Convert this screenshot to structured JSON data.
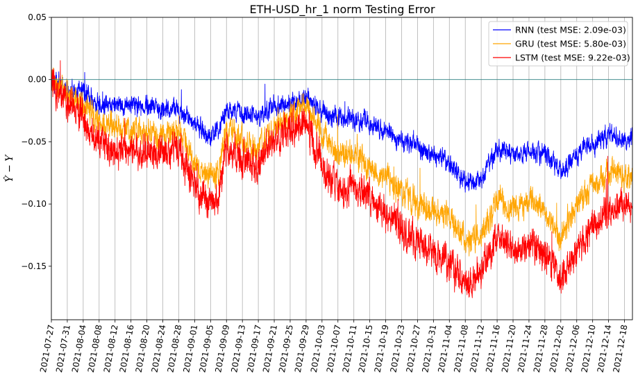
{
  "chart_data": {
    "type": "line",
    "title": "ETH-USD_hr_1 norm Testing Error",
    "ylabel": "Ŷ − Y",
    "xlabel": "",
    "ylim": [
      -0.193,
      0.05
    ],
    "yticks": [
      0.05,
      0.0,
      -0.05,
      -0.1,
      -0.15
    ],
    "ytick_labels": [
      "0.05",
      "0.00",
      "−0.05",
      "−0.10",
      "−0.15"
    ],
    "xlim": [
      "2021-07-27",
      "2021-12-20"
    ],
    "xtick_dates": [
      "2021-07-27",
      "2021-07-31",
      "2021-08-04",
      "2021-08-08",
      "2021-08-12",
      "2021-08-16",
      "2021-08-20",
      "2021-08-24",
      "2021-08-28",
      "2021-09-01",
      "2021-09-05",
      "2021-09-09",
      "2021-09-13",
      "2021-09-17",
      "2021-09-21",
      "2021-09-25",
      "2021-09-29",
      "2021-10-03",
      "2021-10-07",
      "2021-10-11",
      "2021-10-15",
      "2021-10-19",
      "2021-10-23",
      "2021-10-27",
      "2021-10-31",
      "2021-11-04",
      "2021-11-08",
      "2021-11-12",
      "2021-11-16",
      "2021-11-20",
      "2021-11-24",
      "2021-11-28",
      "2021-12-02",
      "2021-12-06",
      "2021-12-10",
      "2021-12-14",
      "2021-12-18"
    ],
    "grid": "vertical",
    "reference_line": {
      "y": 0.0,
      "color": "#2a7f80"
    },
    "legend_position": "top-right",
    "series": [
      {
        "name": "RNN (test MSE: 2.09e-03)",
        "color": "#0000ff",
        "dates": [
          "2021-07-27",
          "2021-07-31",
          "2021-08-04",
          "2021-08-08",
          "2021-08-12",
          "2021-08-16",
          "2021-08-20",
          "2021-08-24",
          "2021-08-28",
          "2021-09-01",
          "2021-09-04",
          "2021-09-07",
          "2021-09-09",
          "2021-09-13",
          "2021-09-17",
          "2021-09-21",
          "2021-09-25",
          "2021-09-29",
          "2021-10-03",
          "2021-10-07",
          "2021-10-11",
          "2021-10-15",
          "2021-10-19",
          "2021-10-23",
          "2021-10-27",
          "2021-10-31",
          "2021-11-04",
          "2021-11-08",
          "2021-11-12",
          "2021-11-16",
          "2021-11-20",
          "2021-11-24",
          "2021-11-28",
          "2021-12-02",
          "2021-12-06",
          "2021-12-10",
          "2021-12-14",
          "2021-12-20"
        ],
        "values": [
          0.0,
          -0.008,
          -0.01,
          -0.02,
          -0.018,
          -0.02,
          -0.022,
          -0.024,
          -0.025,
          -0.035,
          -0.045,
          -0.04,
          -0.025,
          -0.027,
          -0.03,
          -0.02,
          -0.02,
          -0.015,
          -0.025,
          -0.03,
          -0.032,
          -0.035,
          -0.04,
          -0.05,
          -0.055,
          -0.06,
          -0.065,
          -0.083,
          -0.08,
          -0.055,
          -0.06,
          -0.058,
          -0.06,
          -0.075,
          -0.06,
          -0.05,
          -0.045,
          -0.05
        ],
        "noise": 0.006
      },
      {
        "name": "GRU (test MSE: 5.80e-03)",
        "color": "#ffa500",
        "dates": [
          "2021-07-27",
          "2021-07-31",
          "2021-08-04",
          "2021-08-08",
          "2021-08-12",
          "2021-08-16",
          "2021-08-20",
          "2021-08-24",
          "2021-08-28",
          "2021-09-01",
          "2021-09-04",
          "2021-09-07",
          "2021-09-09",
          "2021-09-13",
          "2021-09-17",
          "2021-09-21",
          "2021-09-25",
          "2021-09-29",
          "2021-10-03",
          "2021-10-07",
          "2021-10-11",
          "2021-10-15",
          "2021-10-19",
          "2021-10-23",
          "2021-10-27",
          "2021-10-31",
          "2021-11-04",
          "2021-11-08",
          "2021-11-12",
          "2021-11-16",
          "2021-11-20",
          "2021-11-24",
          "2021-11-28",
          "2021-12-02",
          "2021-12-06",
          "2021-12-10",
          "2021-12-14",
          "2021-12-20"
        ],
        "values": [
          0.0,
          -0.012,
          -0.02,
          -0.035,
          -0.038,
          -0.04,
          -0.042,
          -0.045,
          -0.04,
          -0.065,
          -0.078,
          -0.075,
          -0.04,
          -0.05,
          -0.055,
          -0.04,
          -0.03,
          -0.02,
          -0.045,
          -0.06,
          -0.058,
          -0.07,
          -0.08,
          -0.09,
          -0.1,
          -0.105,
          -0.11,
          -0.13,
          -0.125,
          -0.095,
          -0.105,
          -0.1,
          -0.105,
          -0.125,
          -0.1,
          -0.085,
          -0.075,
          -0.075
        ],
        "noise": 0.008
      },
      {
        "name": "LSTM (test MSE: 9.22e-03)",
        "color": "#ff0000",
        "dates": [
          "2021-07-27",
          "2021-07-31",
          "2021-08-04",
          "2021-08-08",
          "2021-08-12",
          "2021-08-16",
          "2021-08-20",
          "2021-08-24",
          "2021-08-28",
          "2021-09-01",
          "2021-09-04",
          "2021-09-07",
          "2021-09-09",
          "2021-09-13",
          "2021-09-17",
          "2021-09-21",
          "2021-09-25",
          "2021-09-29",
          "2021-10-03",
          "2021-10-07",
          "2021-10-11",
          "2021-10-15",
          "2021-10-19",
          "2021-10-23",
          "2021-10-27",
          "2021-10-31",
          "2021-11-04",
          "2021-11-08",
          "2021-11-12",
          "2021-11-16",
          "2021-11-20",
          "2021-11-24",
          "2021-11-28",
          "2021-12-02",
          "2021-12-06",
          "2021-12-10",
          "2021-12-14",
          "2021-12-20"
        ],
        "values": [
          0.0,
          -0.018,
          -0.03,
          -0.05,
          -0.055,
          -0.055,
          -0.058,
          -0.06,
          -0.055,
          -0.085,
          -0.1,
          -0.095,
          -0.055,
          -0.065,
          -0.07,
          -0.05,
          -0.04,
          -0.035,
          -0.07,
          -0.09,
          -0.085,
          -0.095,
          -0.105,
          -0.12,
          -0.13,
          -0.14,
          -0.15,
          -0.165,
          -0.155,
          -0.125,
          -0.135,
          -0.13,
          -0.14,
          -0.16,
          -0.135,
          -0.12,
          -0.105,
          -0.1
        ],
        "noise": 0.01
      }
    ]
  }
}
